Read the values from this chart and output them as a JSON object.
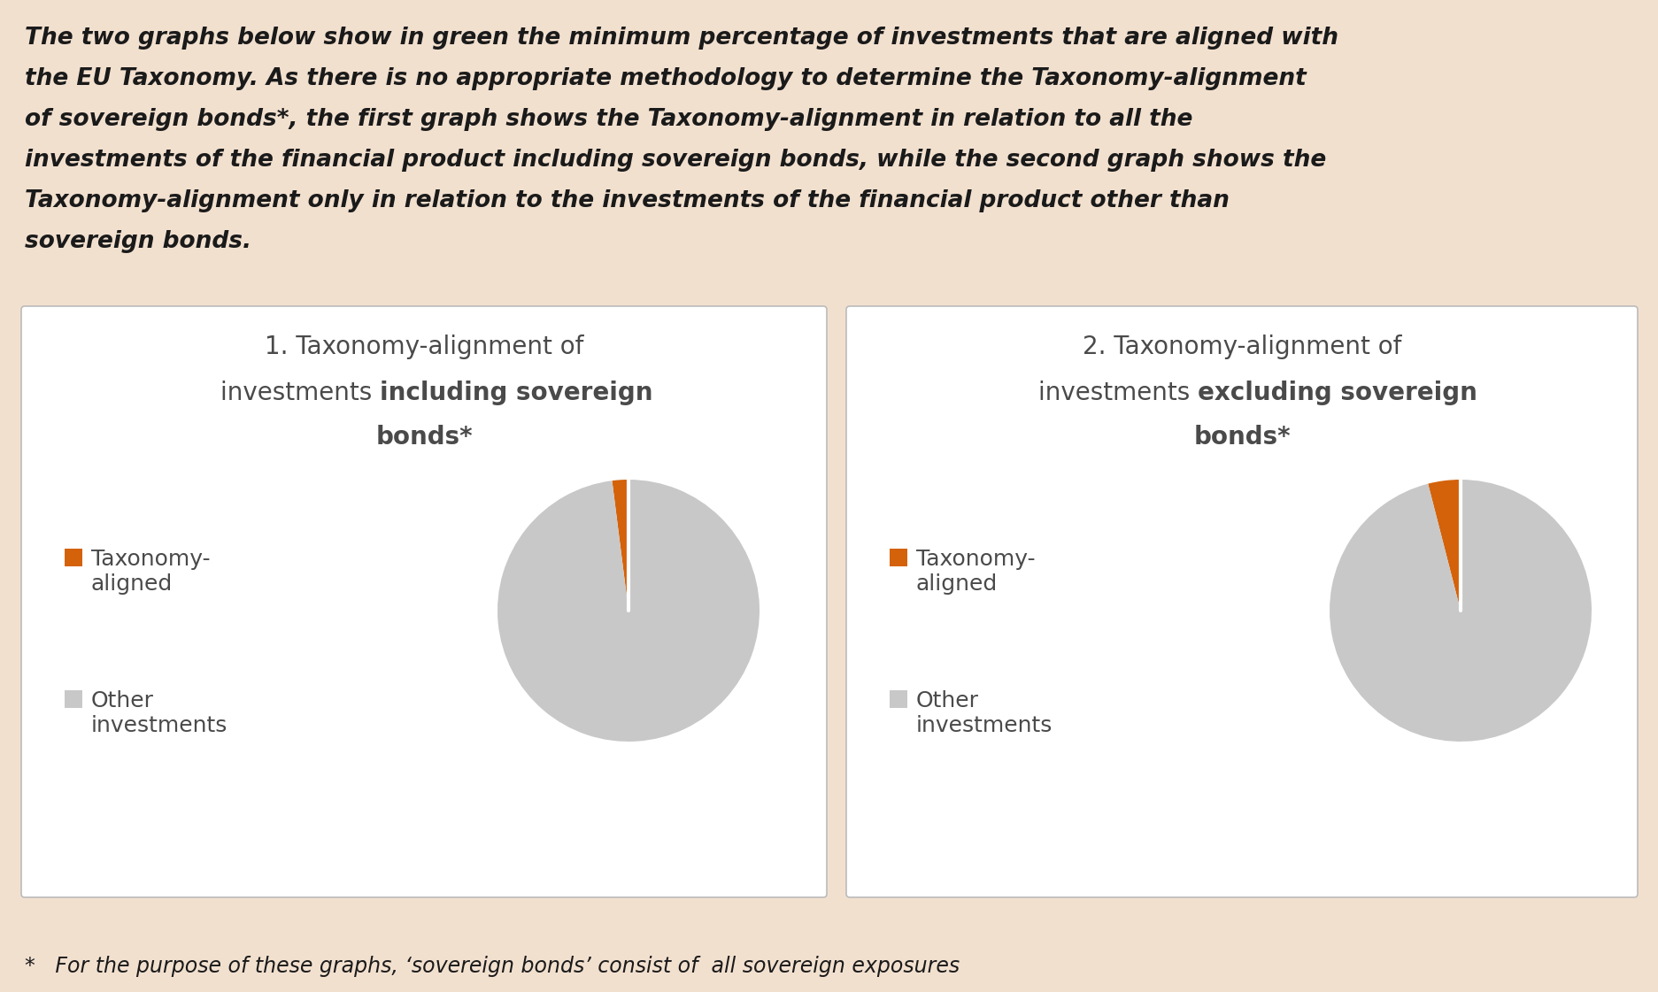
{
  "background_color": "#f2e0cf",
  "panel_background": "#ffffff",
  "header_lines": [
    "The two graphs below show in green the minimum percentage of investments that are aligned with",
    "the EU Taxonomy. As there is no appropriate methodology to determine the Taxonomy-alignment",
    "of sovereign bonds*, the first graph shows the Taxonomy-alignment in relation to all the",
    "investments of the financial product including sovereign bonds, while the second graph shows the",
    "Taxonomy-alignment only in relation to the investments of the financial product other than",
    "sovereign bonds."
  ],
  "footer_text": "*   For the purpose of these graphs, ‘sovereign bonds’ consist of  all sovereign exposures",
  "chart1_title_line1": "1. Taxonomy-alignment of",
  "chart1_title_line2_normal": "investments ",
  "chart1_title_line2_bold": "including sovereign",
  "chart1_title_line3": "bonds*",
  "chart2_title_line1": "2. Taxonomy-alignment of",
  "chart2_title_line2_normal": "investments ",
  "chart2_title_line2_bold": "excluding sovereign",
  "chart2_title_line3": "bonds*",
  "legend_label1_line1": "Taxonomy-",
  "legend_label1_line2": "aligned",
  "legend_label2_line1": "Other",
  "legend_label2_line2": "investments",
  "color_taxonomy_aligned": "#d4620a",
  "color_other": "#c8c8c8",
  "pie1_aligned_pct": 2,
  "pie1_other_pct": 98,
  "pie2_aligned_pct": 4,
  "pie2_other_pct": 96,
  "title_fontsize": 20,
  "legend_fontsize": 18,
  "header_fontsize": 19,
  "footer_fontsize": 17,
  "text_color_dark": "#1a1a1a",
  "text_color_panel": "#4a4a4a"
}
